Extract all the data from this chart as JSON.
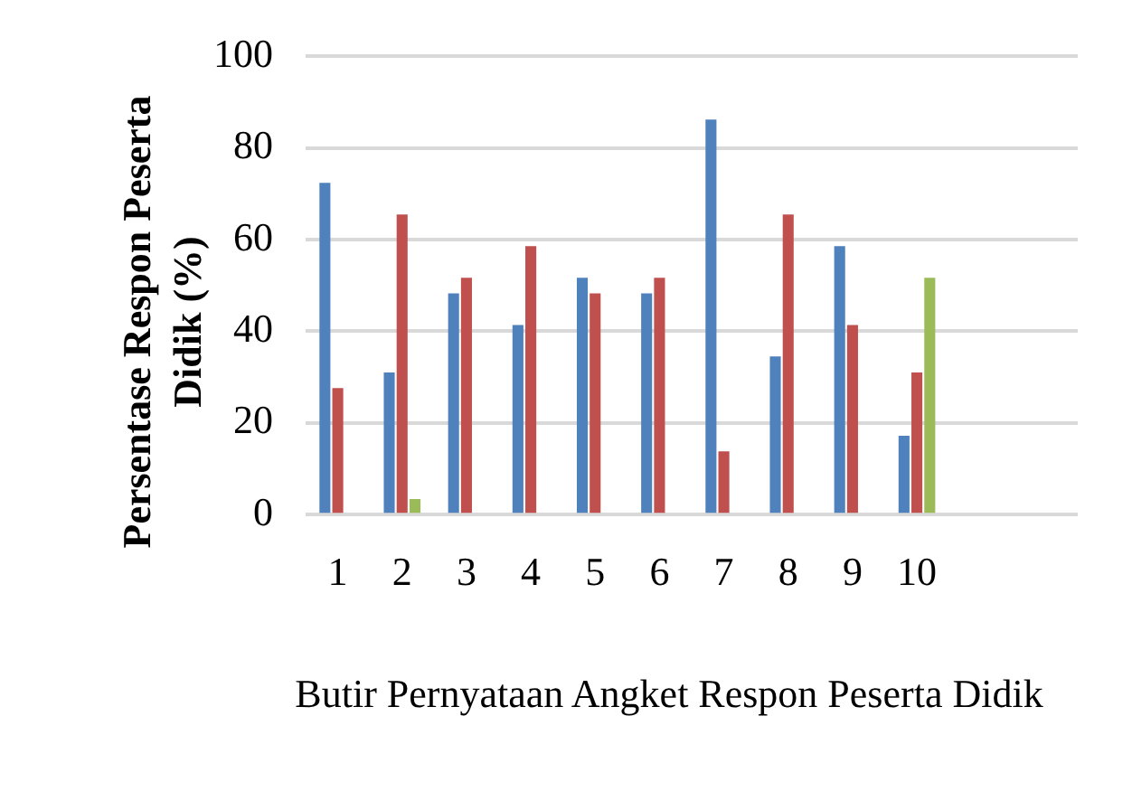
{
  "chart_data": {
    "type": "bar",
    "xlabel": "Butir Pernyataan Angket Respon Peserta Didik",
    "ylabel": "Persentase Respon Peserta Didik (%)",
    "categories": [
      "1",
      "2",
      "3",
      "4",
      "5",
      "6",
      "7",
      "8",
      "9",
      "10",
      null,
      null
    ],
    "series": [
      {
        "color": "#4f81bd",
        "values": [
          72.4,
          31,
          48.3,
          41.4,
          51.7,
          48.3,
          86.2,
          34.5,
          58.6,
          17.2,
          null,
          null
        ]
      },
      {
        "color": "#c0504d",
        "values": [
          27.6,
          65.5,
          51.7,
          58.6,
          48.3,
          51.7,
          13.8,
          65.5,
          41.4,
          31,
          null,
          null
        ]
      },
      {
        "color": "#9bbb59",
        "values": [
          null,
          3.4,
          null,
          null,
          null,
          null,
          null,
          null,
          null,
          51.7,
          null,
          null
        ]
      }
    ],
    "ylim": [
      0,
      100
    ],
    "yticks": [
      0,
      20,
      40,
      60,
      80,
      100
    ],
    "grid": "y",
    "legend": false
  }
}
